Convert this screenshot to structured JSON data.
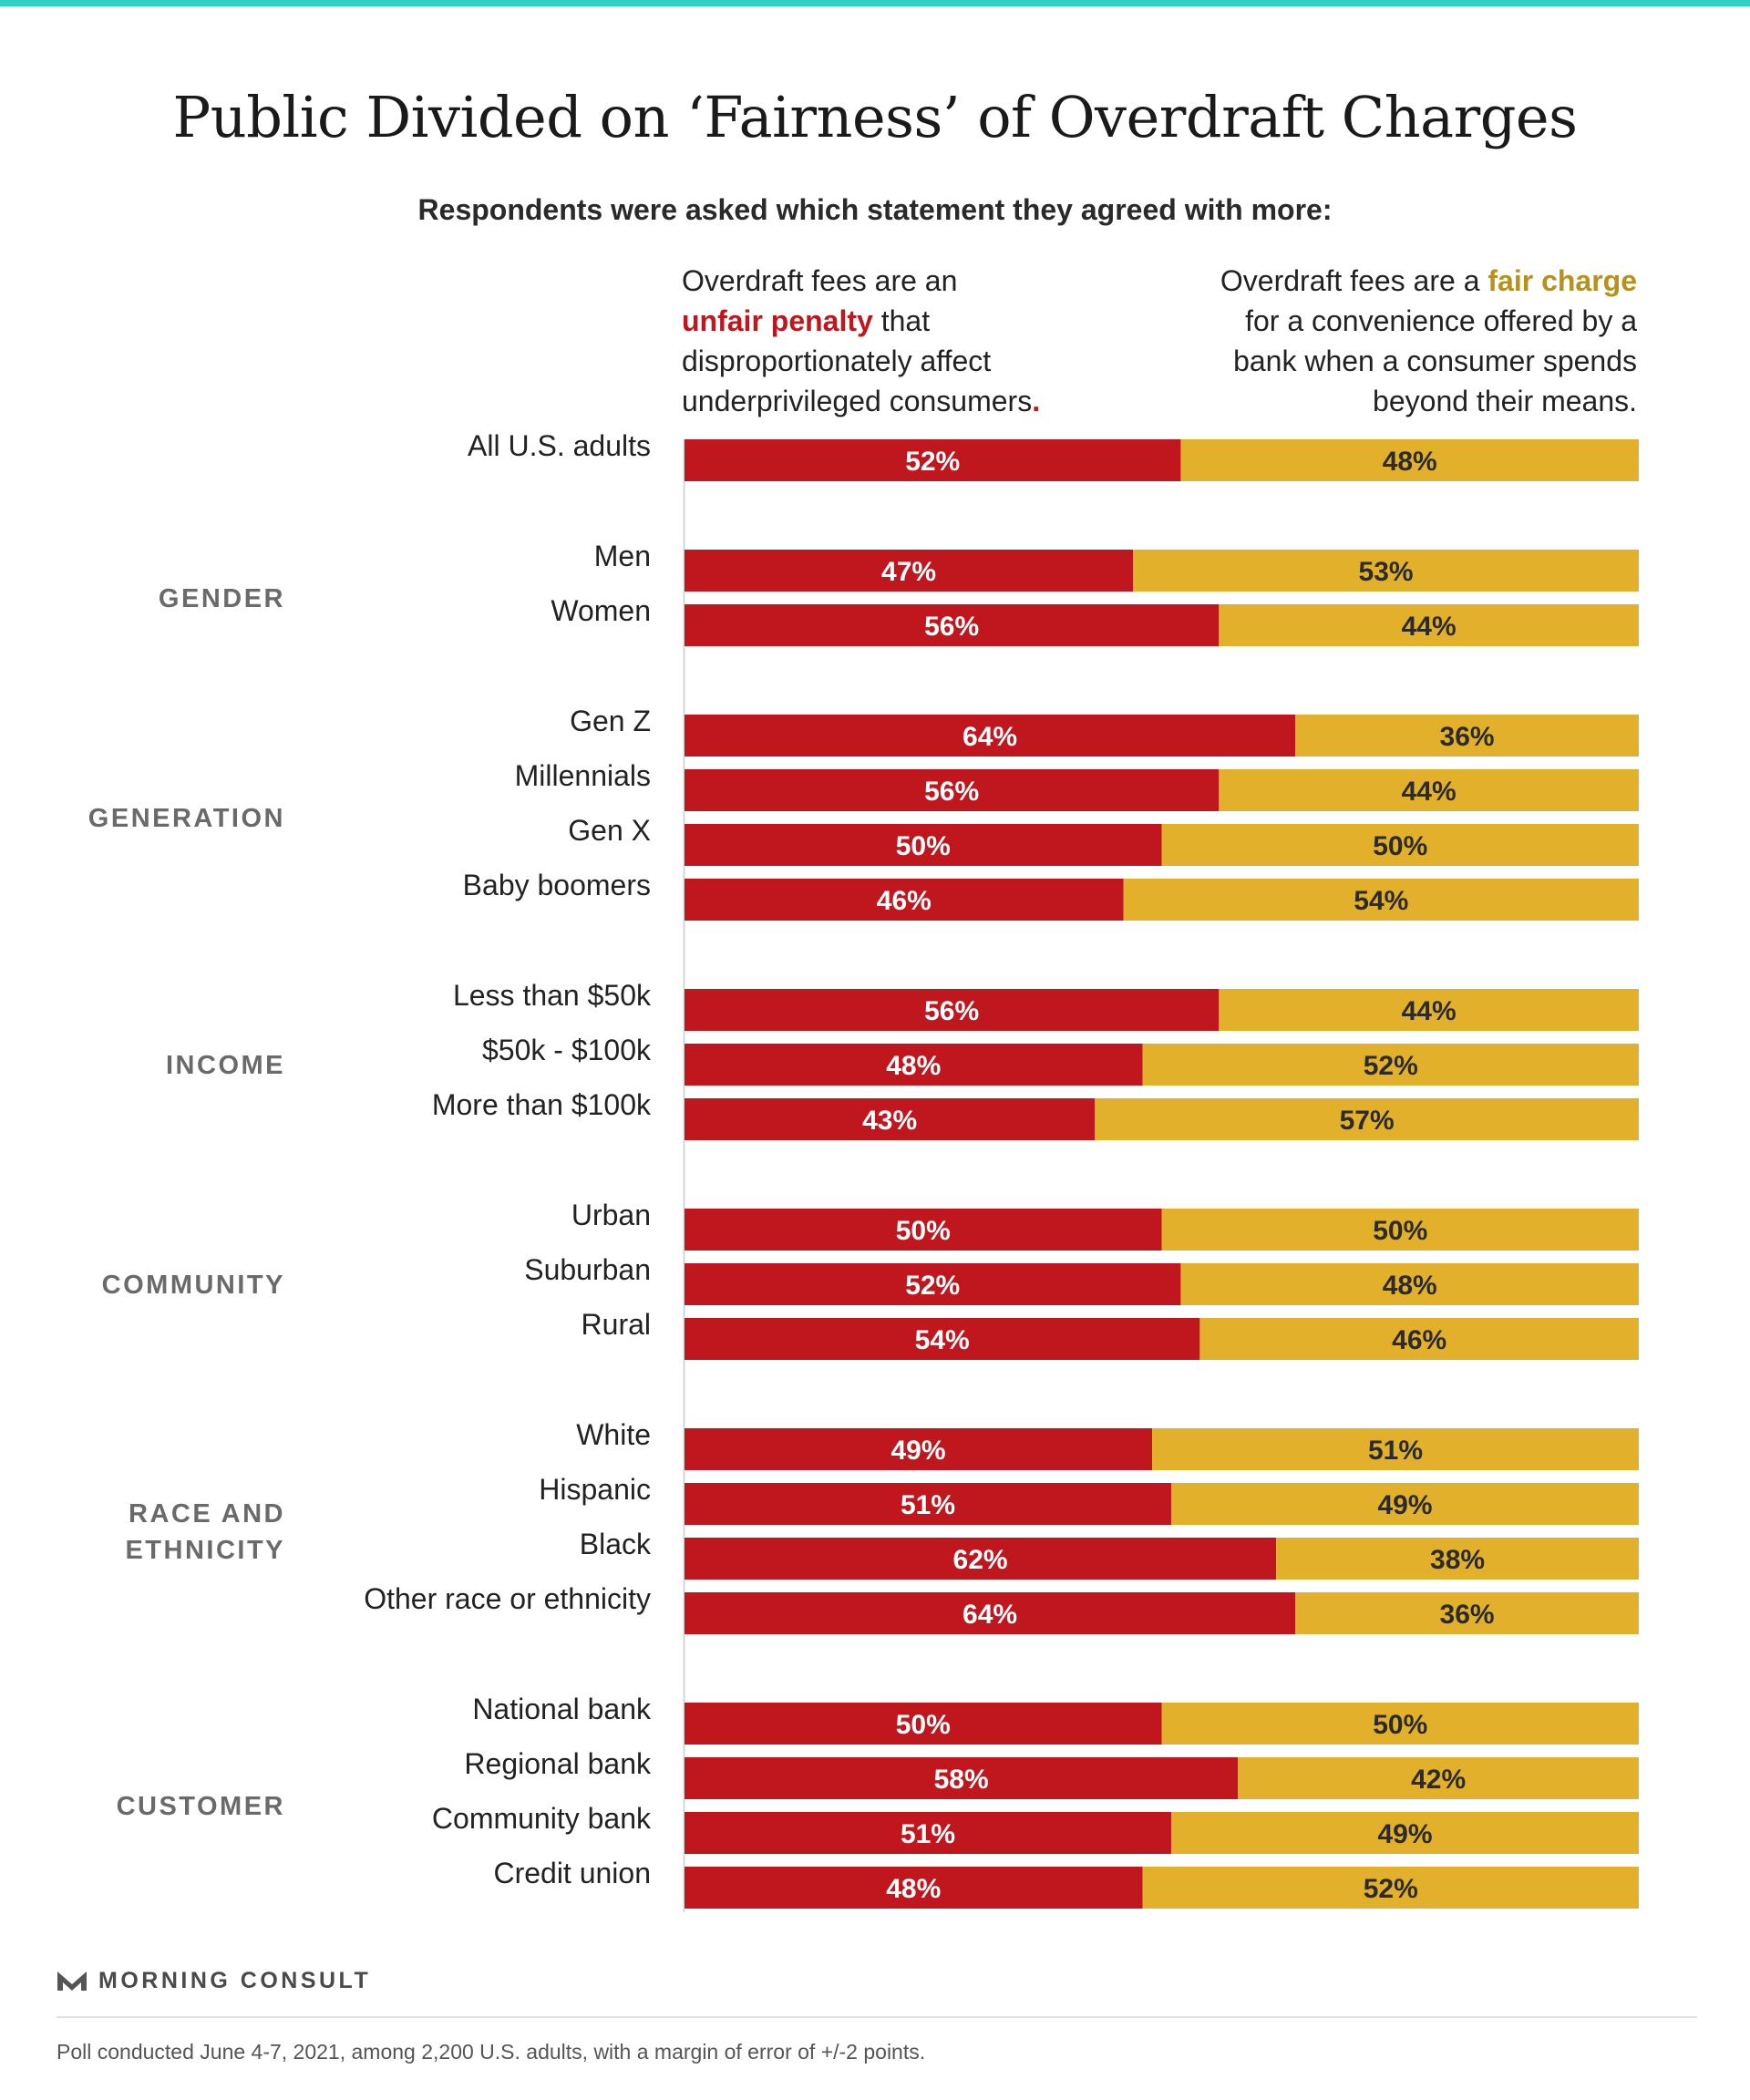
{
  "title": "Public Divided on ‘Fairness’ of Overdraft Charges",
  "subtitle": "Respondents were asked which statement they agreed with more:",
  "statement_left": {
    "line1": "Overdraft fees are an",
    "highlight": "unfair penalty",
    "after_highlight": " that",
    "line3": "disproportionately affect",
    "line4": "underprivileged consumers",
    "period": "."
  },
  "statement_right": {
    "before_highlight": "Overdraft fees are a ",
    "highlight": "fair charge",
    "line2": "for a convenience offered by a",
    "line3": "bank when a consumer spends",
    "line4": "beyond their means."
  },
  "colors": {
    "unfair": "#c0161d",
    "fair": "#e2b02a",
    "unfair_text": "#ffffff",
    "fair_text": "#2b2b2b",
    "accent": "#2fd1c4"
  },
  "chart_data": {
    "type": "bar",
    "stacked": true,
    "orientation": "horizontal",
    "xlim": [
      0,
      100
    ],
    "unit": "%",
    "series_order": [
      "unfair penalty",
      "fair charge"
    ],
    "groups": [
      {
        "name": "",
        "rows": [
          {
            "label": "All U.S. adults",
            "unfair": 52,
            "fair": 48
          }
        ]
      },
      {
        "name": "GENDER",
        "rows": [
          {
            "label": "Men",
            "unfair": 47,
            "fair": 53
          },
          {
            "label": "Women",
            "unfair": 56,
            "fair": 44
          }
        ]
      },
      {
        "name": "GENERATION",
        "rows": [
          {
            "label": "Gen Z",
            "unfair": 64,
            "fair": 36
          },
          {
            "label": "Millennials",
            "unfair": 56,
            "fair": 44
          },
          {
            "label": "Gen X",
            "unfair": 50,
            "fair": 50
          },
          {
            "label": "Baby boomers",
            "unfair": 46,
            "fair": 54
          }
        ]
      },
      {
        "name": "INCOME",
        "rows": [
          {
            "label": "Less than $50k",
            "unfair": 56,
            "fair": 44
          },
          {
            "label": "$50k - $100k",
            "unfair": 48,
            "fair": 52
          },
          {
            "label": "More than $100k",
            "unfair": 43,
            "fair": 57
          }
        ]
      },
      {
        "name": "COMMUNITY",
        "rows": [
          {
            "label": "Urban",
            "unfair": 50,
            "fair": 50
          },
          {
            "label": "Suburban",
            "unfair": 52,
            "fair": 48
          },
          {
            "label": "Rural",
            "unfair": 54,
            "fair": 46
          }
        ]
      },
      {
        "name": "RACE AND ETHNICITY",
        "name_lines": [
          "RACE AND",
          "ETHNICITY"
        ],
        "rows": [
          {
            "label": "White",
            "unfair": 49,
            "fair": 51
          },
          {
            "label": "Hispanic",
            "unfair": 51,
            "fair": 49
          },
          {
            "label": "Black",
            "unfair": 62,
            "fair": 38
          },
          {
            "label": "Other race or ethnicity",
            "unfair": 64,
            "fair": 36
          }
        ]
      },
      {
        "name": "CUSTOMER",
        "rows": [
          {
            "label": "National bank",
            "unfair": 50,
            "fair": 50
          },
          {
            "label": "Regional bank",
            "unfair": 58,
            "fair": 42
          },
          {
            "label": "Community bank",
            "unfair": 51,
            "fair": 49
          },
          {
            "label": "Credit union",
            "unfair": 48,
            "fair": 52
          }
        ]
      }
    ]
  },
  "footer": {
    "logo_text": "MORNING CONSULT",
    "logo_icon": "morning-consult-m-logo",
    "note": "Poll conducted June 4-7, 2021, among 2,200 U.S. adults, with a margin of error of +/-2 points."
  }
}
